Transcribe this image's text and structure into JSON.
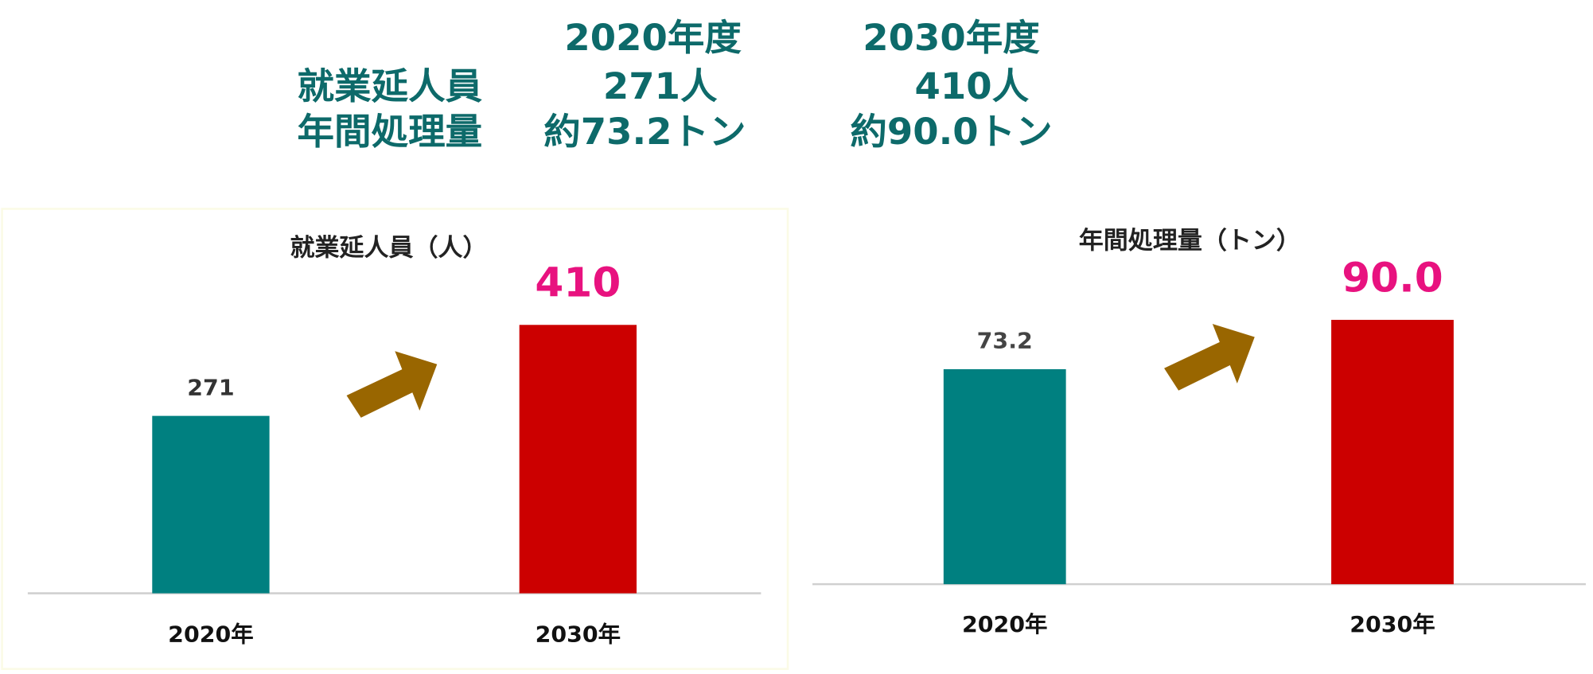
{
  "summary": {
    "headers": [
      "2020年度",
      "2030年度"
    ],
    "rows": [
      {
        "label": "就業延人員",
        "values": [
          "271人",
          "410人"
        ]
      },
      {
        "label": "年間処理量",
        "values": [
          "約73.2トン",
          "約90.0トン"
        ]
      }
    ]
  },
  "chart_data": [
    {
      "type": "bar",
      "title": "就業延人員（人）",
      "categories": [
        "2020年",
        "2030年"
      ],
      "values": [
        271,
        410
      ],
      "colors": [
        "#008080",
        "#cc0000"
      ],
      "label_colors": [
        "#333333",
        "#e8127f"
      ]
    },
    {
      "type": "bar",
      "title": "年間処理量（トン）",
      "categories": [
        "2020年",
        "2030年"
      ],
      "values": [
        73.2,
        90.0
      ],
      "value_labels": [
        "73.2",
        "90.0"
      ],
      "colors": [
        "#008080",
        "#cc0000"
      ],
      "label_colors": [
        "#444444",
        "#e8127f"
      ]
    }
  ]
}
